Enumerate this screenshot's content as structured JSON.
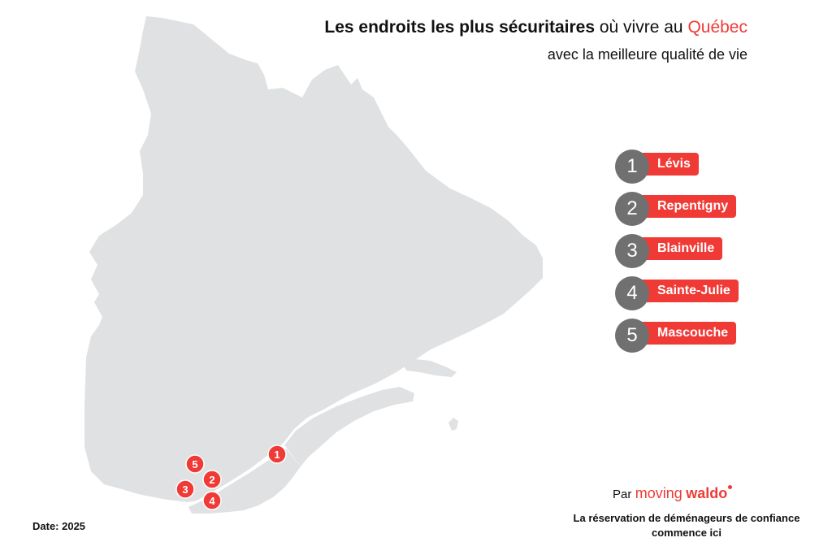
{
  "colors": {
    "accent": "#f03a36",
    "land": "#e0e1e2",
    "water": "#ffffff",
    "badge": "#707070",
    "text": "#111111"
  },
  "title": {
    "part_bold": "Les endroits les plus sécuritaires",
    "part_normal": " où vivre au ",
    "part_accent": "Québec"
  },
  "subtitle": "avec la meilleure qualité de vie",
  "legend": [
    {
      "rank": "1",
      "city": "Lévis"
    },
    {
      "rank": "2",
      "city": "Repentigny"
    },
    {
      "rank": "3",
      "city": "Blainville"
    },
    {
      "rank": "4",
      "city": "Sainte-Julie"
    },
    {
      "rank": "5",
      "city": "Mascouche"
    }
  ],
  "markers": [
    "1",
    "2",
    "3",
    "4",
    "5"
  ],
  "date": "Date: 2025",
  "brand": {
    "prefix": "Par",
    "name_part1": "moving",
    "name_part2": "waldo"
  },
  "tagline": "La réservation de déménageurs de confiance commence ici"
}
